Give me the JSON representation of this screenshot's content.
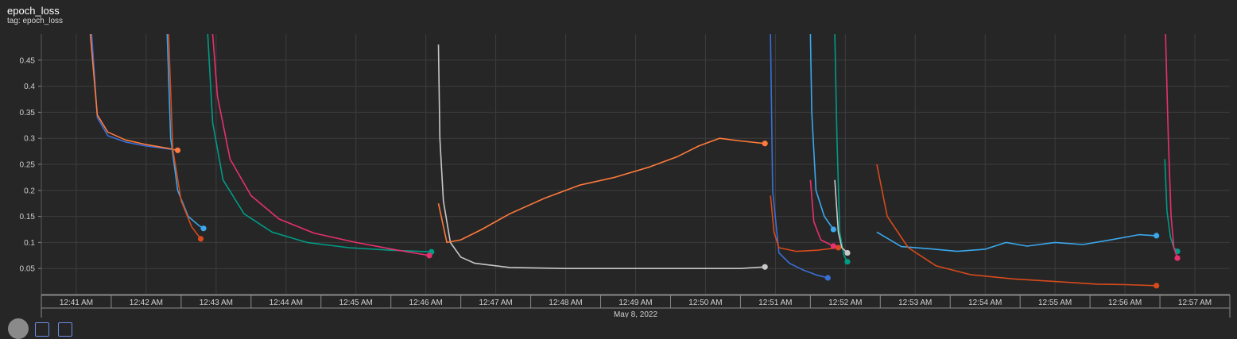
{
  "header": {
    "title": "epoch_loss",
    "tag": "tag: epoch_loss"
  },
  "chart_data": {
    "type": "line",
    "title": "epoch_loss",
    "subtitle": "tag: epoch_loss",
    "xlabel": "May 8, 2022",
    "ylabel": "",
    "x_ticks": [
      "12:41 AM",
      "12:42 AM",
      "12:43 AM",
      "12:44 AM",
      "12:45 AM",
      "12:46 AM",
      "12:47 AM",
      "12:48 AM",
      "12:49 AM",
      "12:50 AM",
      "12:51 AM",
      "12:52 AM",
      "12:53 AM",
      "12:54 AM",
      "12:55 AM",
      "12:56 AM",
      "12:57 AM"
    ],
    "y_ticks": [
      0.05,
      0.1,
      0.15,
      0.2,
      0.25,
      0.3,
      0.35,
      0.4,
      0.45
    ],
    "xlim_minutes": [
      40.5,
      57.5
    ],
    "ylim": [
      0,
      0.5
    ],
    "grid": true,
    "series": [
      {
        "color": "#3a6fd8",
        "x": [
          41.22,
          41.3,
          41.45,
          41.7,
          42.0,
          42.3,
          42.45
        ],
        "y": [
          0.5,
          0.34,
          0.305,
          0.293,
          0.285,
          0.28,
          0.277
        ]
      },
      {
        "color": "#ff7a3c",
        "x": [
          41.2,
          41.3,
          41.45,
          41.7,
          42.0,
          42.3,
          42.45
        ],
        "y": [
          0.5,
          0.345,
          0.312,
          0.297,
          0.288,
          0.281,
          0.277
        ],
        "end": true
      },
      {
        "color": "#3aa8ec",
        "x": [
          42.3,
          42.35,
          42.45,
          42.6,
          42.75,
          42.82
        ],
        "y": [
          0.5,
          0.3,
          0.2,
          0.15,
          0.133,
          0.127
        ],
        "end": true
      },
      {
        "color": "#d84a1c",
        "x": [
          42.32,
          42.38,
          42.5,
          42.65,
          42.78
        ],
        "y": [
          0.5,
          0.28,
          0.18,
          0.13,
          0.107
        ],
        "end": true
      },
      {
        "color": "#009b86",
        "x": [
          42.88,
          42.95,
          43.1,
          43.4,
          43.8,
          44.3,
          44.9,
          45.5,
          46.08
        ],
        "y": [
          0.5,
          0.33,
          0.22,
          0.155,
          0.12,
          0.1,
          0.09,
          0.085,
          0.082
        ],
        "end": true
      },
      {
        "color": "#e8306e",
        "x": [
          42.95,
          43.02,
          43.2,
          43.5,
          43.9,
          44.4,
          45.0,
          45.6,
          46.05
        ],
        "y": [
          0.5,
          0.38,
          0.26,
          0.19,
          0.145,
          0.118,
          0.1,
          0.085,
          0.075
        ],
        "end": true
      },
      {
        "color": "#c8c8c8",
        "x": [
          46.18,
          46.2,
          46.25,
          46.35,
          46.5,
          46.7,
          47.2,
          48.0,
          49.0,
          50.0,
          50.5,
          50.85
        ],
        "y": [
          0.48,
          0.3,
          0.18,
          0.1,
          0.072,
          0.06,
          0.052,
          0.05,
          0.05,
          0.05,
          0.05,
          0.053
        ],
        "end": true
      },
      {
        "color": "#ff7a3c",
        "x": [
          46.18,
          46.3,
          46.5,
          46.8,
          47.2,
          47.7,
          48.2,
          48.7,
          49.2,
          49.6,
          49.9,
          50.2,
          50.5,
          50.85
        ],
        "y": [
          0.175,
          0.1,
          0.105,
          0.125,
          0.155,
          0.185,
          0.21,
          0.225,
          0.245,
          0.265,
          0.285,
          0.3,
          0.295,
          0.29
        ],
        "end": true
      },
      {
        "color": "#3a6fd8",
        "x": [
          50.93,
          50.96,
          51.05,
          51.2,
          51.4,
          51.6,
          51.75
        ],
        "y": [
          0.5,
          0.2,
          0.08,
          0.06,
          0.047,
          0.037,
          0.032
        ],
        "end": true
      },
      {
        "color": "#d84a1c",
        "x": [
          50.93,
          50.98,
          51.05,
          51.3,
          51.6,
          51.9
        ],
        "y": [
          0.19,
          0.12,
          0.09,
          0.083,
          0.085,
          0.09
        ],
        "end": true
      },
      {
        "color": "#3aa8ec",
        "x": [
          51.5,
          51.52,
          51.58,
          51.7,
          51.83
        ],
        "y": [
          0.5,
          0.35,
          0.2,
          0.15,
          0.125
        ],
        "end": true
      },
      {
        "color": "#e8306e",
        "x": [
          51.5,
          51.55,
          51.65,
          51.83
        ],
        "y": [
          0.22,
          0.14,
          0.105,
          0.093
        ],
        "end": true
      },
      {
        "color": "#009b86",
        "x": [
          51.85,
          51.88,
          51.92,
          51.98,
          52.03
        ],
        "y": [
          0.5,
          0.3,
          0.12,
          0.075,
          0.063
        ],
        "end": true
      },
      {
        "color": "#c8c8c8",
        "x": [
          51.85,
          51.9,
          51.95,
          52.03
        ],
        "y": [
          0.22,
          0.12,
          0.09,
          0.08
        ],
        "end": true
      },
      {
        "color": "#3aa8ec",
        "x": [
          52.45,
          52.8,
          53.2,
          53.6,
          54.0,
          54.3,
          54.6,
          55.0,
          55.4,
          55.8,
          56.2,
          56.45
        ],
        "y": [
          0.12,
          0.092,
          0.088,
          0.083,
          0.087,
          0.1,
          0.093,
          0.1,
          0.096,
          0.105,
          0.115,
          0.113
        ],
        "end": true
      },
      {
        "color": "#d84a1c",
        "x": [
          52.45,
          52.6,
          52.9,
          53.3,
          53.8,
          54.4,
          55.0,
          55.6,
          56.0,
          56.45
        ],
        "y": [
          0.25,
          0.15,
          0.09,
          0.055,
          0.038,
          0.03,
          0.025,
          0.02,
          0.019,
          0.017
        ],
        "end": true
      },
      {
        "color": "#009b86",
        "x": [
          56.57,
          56.6,
          56.65,
          56.7,
          56.75
        ],
        "y": [
          0.26,
          0.16,
          0.11,
          0.09,
          0.083
        ],
        "end": true
      },
      {
        "color": "#e8306e",
        "x": [
          56.58,
          56.62,
          56.66,
          56.7,
          56.75
        ],
        "y": [
          0.5,
          0.3,
          0.15,
          0.09,
          0.07
        ],
        "end": true
      }
    ]
  }
}
